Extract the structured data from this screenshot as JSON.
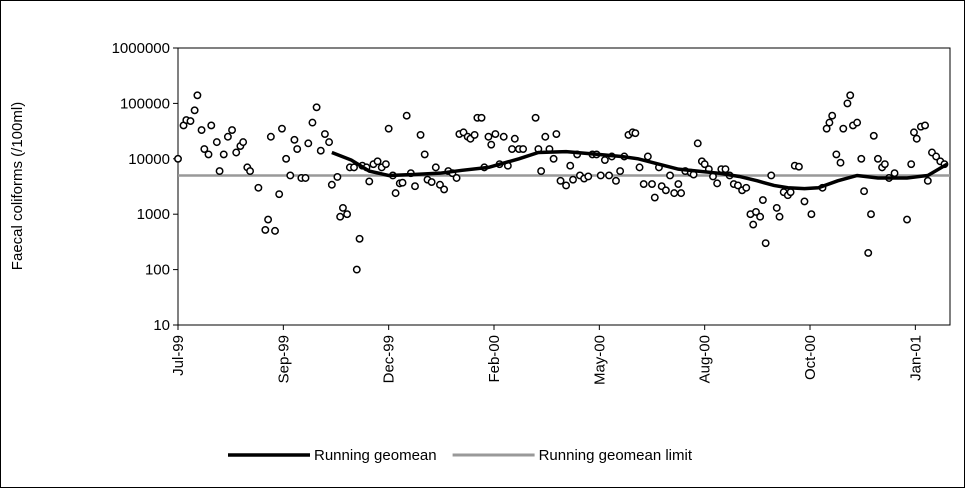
{
  "chart_data": {
    "type": "scatter",
    "y_label": "Faecal coliforms (/100ml)",
    "log_y": true,
    "grid": false,
    "legend": "bottom",
    "ylim": [
      10,
      1000000
    ],
    "yticks": [
      10,
      100,
      1000,
      10000,
      100000,
      1000000
    ],
    "xlim": [
      0,
      557
    ],
    "xticks": [
      {
        "value": 0,
        "label": "Jul-99"
      },
      {
        "value": 76,
        "label": "Sep-99"
      },
      {
        "value": 152,
        "label": "Dec-99"
      },
      {
        "value": 228,
        "label": "Feb-00"
      },
      {
        "value": 304,
        "label": "May-00"
      },
      {
        "value": 380,
        "label": "Aug-00"
      },
      {
        "value": 456,
        "label": "Oct-00"
      },
      {
        "value": 532,
        "label": "Jan-01"
      }
    ],
    "series": [
      {
        "type": "scatter",
        "color": "#000000",
        "x": [
          0,
          4,
          6,
          9,
          12,
          14,
          17,
          19,
          22,
          24,
          28,
          30,
          33,
          36,
          39,
          42,
          45,
          47,
          50,
          52,
          58,
          63,
          65,
          67,
          70,
          73,
          75,
          78,
          81,
          84,
          86,
          89,
          92,
          94,
          97,
          100,
          103,
          106,
          109,
          111,
          115,
          117,
          119,
          122,
          124,
          127,
          129,
          131,
          133,
          136,
          138,
          141,
          144,
          147,
          150,
          152,
          155,
          157,
          160,
          162,
          165,
          168,
          171,
          175,
          178,
          180,
          183,
          186,
          189,
          192,
          195,
          198,
          201,
          203,
          206,
          209,
          211,
          214,
          216,
          219,
          221,
          224,
          226,
          229,
          232,
          235,
          238,
          241,
          243,
          246,
          249,
          258,
          260,
          262,
          265,
          268,
          271,
          273,
          276,
          280,
          283,
          285,
          288,
          290,
          293,
          296,
          299,
          302,
          305,
          308,
          311,
          313,
          316,
          319,
          322,
          325,
          328,
          330,
          333,
          336,
          339,
          342,
          344,
          347,
          349,
          352,
          355,
          358,
          361,
          363,
          366,
          370,
          372,
          375,
          378,
          380,
          383,
          386,
          389,
          392,
          395,
          398,
          401,
          404,
          407,
          410,
          413,
          415,
          417,
          420,
          422,
          424,
          428,
          432,
          434,
          437,
          440,
          442,
          445,
          448,
          452,
          457,
          465,
          468,
          470,
          472,
          475,
          478,
          480,
          483,
          485,
          487,
          490,
          493,
          495,
          498,
          500,
          502,
          505,
          508,
          510,
          513,
          517,
          526,
          529,
          531,
          533,
          536,
          539,
          541,
          544,
          547,
          550,
          553
        ],
        "values": [
          10000,
          40000,
          50000,
          48000,
          75000,
          140000,
          33000,
          15000,
          12000,
          40000,
          20000,
          6000,
          12000,
          25000,
          33000,
          13000,
          17000,
          20000,
          7000,
          6000,
          3000,
          520,
          800,
          25000,
          500,
          2300,
          35000,
          10000,
          5000,
          22000,
          15000,
          4500,
          4500,
          19000,
          45000,
          85000,
          14000,
          28000,
          20000,
          3400,
          4700,
          900,
          1300,
          1000,
          7000,
          7000,
          100,
          360,
          7500,
          7000,
          3900,
          8000,
          9000,
          7000,
          8000,
          35000,
          5000,
          2400,
          3600,
          3700,
          60000,
          5500,
          3200,
          27000,
          12000,
          4200,
          3800,
          7000,
          3400,
          2800,
          6000,
          5500,
          4500,
          28000,
          30000,
          25000,
          23000,
          27000,
          55000,
          55000,
          7000,
          25000,
          18000,
          28000,
          8000,
          25000,
          7500,
          15000,
          23000,
          15000,
          15000,
          55000,
          15000,
          6000,
          25000,
          15000,
          10000,
          28000,
          4000,
          3300,
          7500,
          4200,
          12000,
          5000,
          4400,
          4800,
          12000,
          12000,
          5000,
          9500,
          5000,
          11000,
          4000,
          6000,
          11000,
          27000,
          30000,
          29000,
          7000,
          3500,
          11000,
          3500,
          2000,
          7000,
          3200,
          2700,
          5000,
          2400,
          3500,
          2400,
          6000,
          5600,
          5200,
          19000,
          9000,
          8000,
          6500,
          4800,
          3600,
          6500,
          6500,
          5000,
          3500,
          3300,
          2700,
          3000,
          1000,
          650,
          1100,
          900,
          1800,
          300,
          5000,
          1300,
          900,
          2500,
          2200,
          2500,
          7500,
          7200,
          1700,
          1000,
          3000,
          35000,
          45000,
          60000,
          12000,
          8500,
          35000,
          100000,
          140000,
          40000,
          45000,
          10000,
          2600,
          200,
          1000,
          26000,
          10000,
          7000,
          8000,
          4500,
          5500,
          800,
          8000,
          30000,
          23000,
          38000,
          40000,
          4000,
          13000,
          11000,
          9000,
          8000
        ]
      },
      {
        "type": "line",
        "name": "Running geomean",
        "color": "#000000",
        "x": [
          111,
          125,
          138,
          152,
          170,
          189,
          205,
          224,
          246,
          260,
          280,
          303,
          320,
          332,
          347,
          361,
          375,
          390,
          405,
          418,
          430,
          440,
          452,
          462,
          476,
          490,
          505,
          526,
          541,
          555
        ],
        "values": [
          13000,
          9500,
          6000,
          5000,
          5200,
          5500,
          6200,
          7000,
          10000,
          13000,
          13500,
          12000,
          11000,
          10000,
          8000,
          6500,
          6000,
          5500,
          4800,
          4000,
          3300,
          3000,
          2900,
          3000,
          4000,
          5000,
          4500,
          4500,
          5000,
          8000
        ]
      },
      {
        "type": "line",
        "name": "Running geomean limit",
        "color": "#999999",
        "x": [
          0,
          557
        ],
        "values": [
          5000,
          5000
        ]
      }
    ]
  }
}
